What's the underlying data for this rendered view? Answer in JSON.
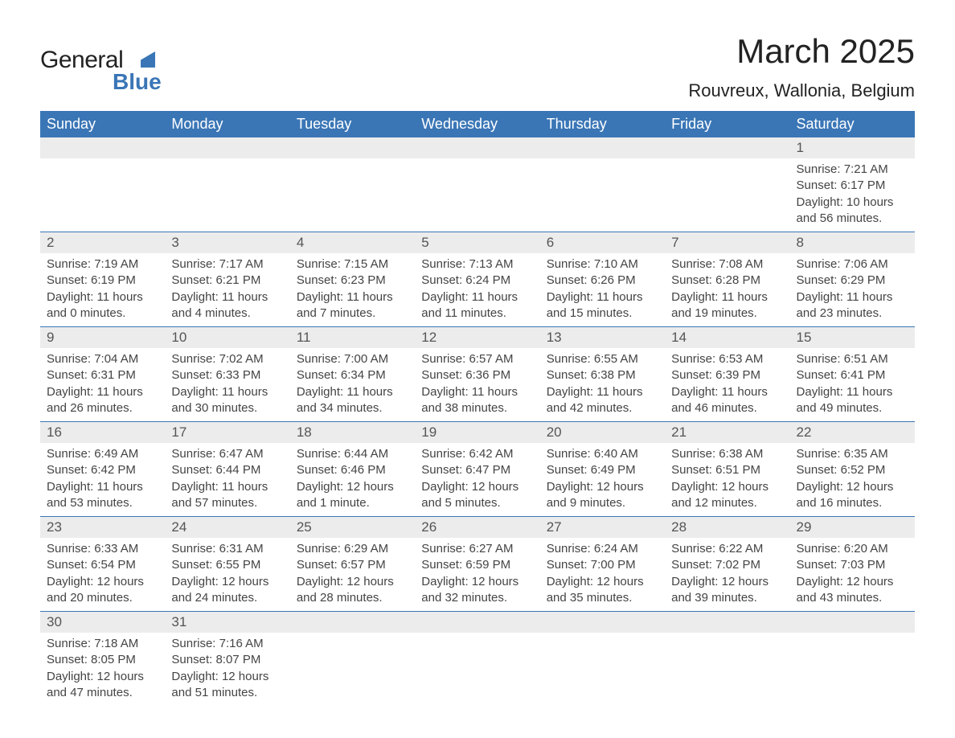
{
  "brand": {
    "word1": "General",
    "word2": "Blue",
    "accent_color": "#3a76b6"
  },
  "title": "March 2025",
  "location": "Rouvreux, Wallonia, Belgium",
  "colors": {
    "header_bg": "#3a76b6",
    "header_text": "#ffffff",
    "daynum_bg": "#ececec",
    "row_border": "#3a76b6",
    "body_text": "#444444",
    "page_bg": "#ffffff"
  },
  "typography": {
    "title_fontsize": 42,
    "location_fontsize": 22,
    "weekday_fontsize": 18,
    "daynum_fontsize": 17,
    "detail_fontsize": 15
  },
  "weekdays": [
    "Sunday",
    "Monday",
    "Tuesday",
    "Wednesday",
    "Thursday",
    "Friday",
    "Saturday"
  ],
  "weeks": [
    [
      null,
      null,
      null,
      null,
      null,
      null,
      {
        "d": "1",
        "sr": "Sunrise: 7:21 AM",
        "ss": "Sunset: 6:17 PM",
        "dl1": "Daylight: 10 hours",
        "dl2": "and 56 minutes."
      }
    ],
    [
      {
        "d": "2",
        "sr": "Sunrise: 7:19 AM",
        "ss": "Sunset: 6:19 PM",
        "dl1": "Daylight: 11 hours",
        "dl2": "and 0 minutes."
      },
      {
        "d": "3",
        "sr": "Sunrise: 7:17 AM",
        "ss": "Sunset: 6:21 PM",
        "dl1": "Daylight: 11 hours",
        "dl2": "and 4 minutes."
      },
      {
        "d": "4",
        "sr": "Sunrise: 7:15 AM",
        "ss": "Sunset: 6:23 PM",
        "dl1": "Daylight: 11 hours",
        "dl2": "and 7 minutes."
      },
      {
        "d": "5",
        "sr": "Sunrise: 7:13 AM",
        "ss": "Sunset: 6:24 PM",
        "dl1": "Daylight: 11 hours",
        "dl2": "and 11 minutes."
      },
      {
        "d": "6",
        "sr": "Sunrise: 7:10 AM",
        "ss": "Sunset: 6:26 PM",
        "dl1": "Daylight: 11 hours",
        "dl2": "and 15 minutes."
      },
      {
        "d": "7",
        "sr": "Sunrise: 7:08 AM",
        "ss": "Sunset: 6:28 PM",
        "dl1": "Daylight: 11 hours",
        "dl2": "and 19 minutes."
      },
      {
        "d": "8",
        "sr": "Sunrise: 7:06 AM",
        "ss": "Sunset: 6:29 PM",
        "dl1": "Daylight: 11 hours",
        "dl2": "and 23 minutes."
      }
    ],
    [
      {
        "d": "9",
        "sr": "Sunrise: 7:04 AM",
        "ss": "Sunset: 6:31 PM",
        "dl1": "Daylight: 11 hours",
        "dl2": "and 26 minutes."
      },
      {
        "d": "10",
        "sr": "Sunrise: 7:02 AM",
        "ss": "Sunset: 6:33 PM",
        "dl1": "Daylight: 11 hours",
        "dl2": "and 30 minutes."
      },
      {
        "d": "11",
        "sr": "Sunrise: 7:00 AM",
        "ss": "Sunset: 6:34 PM",
        "dl1": "Daylight: 11 hours",
        "dl2": "and 34 minutes."
      },
      {
        "d": "12",
        "sr": "Sunrise: 6:57 AM",
        "ss": "Sunset: 6:36 PM",
        "dl1": "Daylight: 11 hours",
        "dl2": "and 38 minutes."
      },
      {
        "d": "13",
        "sr": "Sunrise: 6:55 AM",
        "ss": "Sunset: 6:38 PM",
        "dl1": "Daylight: 11 hours",
        "dl2": "and 42 minutes."
      },
      {
        "d": "14",
        "sr": "Sunrise: 6:53 AM",
        "ss": "Sunset: 6:39 PM",
        "dl1": "Daylight: 11 hours",
        "dl2": "and 46 minutes."
      },
      {
        "d": "15",
        "sr": "Sunrise: 6:51 AM",
        "ss": "Sunset: 6:41 PM",
        "dl1": "Daylight: 11 hours",
        "dl2": "and 49 minutes."
      }
    ],
    [
      {
        "d": "16",
        "sr": "Sunrise: 6:49 AM",
        "ss": "Sunset: 6:42 PM",
        "dl1": "Daylight: 11 hours",
        "dl2": "and 53 minutes."
      },
      {
        "d": "17",
        "sr": "Sunrise: 6:47 AM",
        "ss": "Sunset: 6:44 PM",
        "dl1": "Daylight: 11 hours",
        "dl2": "and 57 minutes."
      },
      {
        "d": "18",
        "sr": "Sunrise: 6:44 AM",
        "ss": "Sunset: 6:46 PM",
        "dl1": "Daylight: 12 hours",
        "dl2": "and 1 minute."
      },
      {
        "d": "19",
        "sr": "Sunrise: 6:42 AM",
        "ss": "Sunset: 6:47 PM",
        "dl1": "Daylight: 12 hours",
        "dl2": "and 5 minutes."
      },
      {
        "d": "20",
        "sr": "Sunrise: 6:40 AM",
        "ss": "Sunset: 6:49 PM",
        "dl1": "Daylight: 12 hours",
        "dl2": "and 9 minutes."
      },
      {
        "d": "21",
        "sr": "Sunrise: 6:38 AM",
        "ss": "Sunset: 6:51 PM",
        "dl1": "Daylight: 12 hours",
        "dl2": "and 12 minutes."
      },
      {
        "d": "22",
        "sr": "Sunrise: 6:35 AM",
        "ss": "Sunset: 6:52 PM",
        "dl1": "Daylight: 12 hours",
        "dl2": "and 16 minutes."
      }
    ],
    [
      {
        "d": "23",
        "sr": "Sunrise: 6:33 AM",
        "ss": "Sunset: 6:54 PM",
        "dl1": "Daylight: 12 hours",
        "dl2": "and 20 minutes."
      },
      {
        "d": "24",
        "sr": "Sunrise: 6:31 AM",
        "ss": "Sunset: 6:55 PM",
        "dl1": "Daylight: 12 hours",
        "dl2": "and 24 minutes."
      },
      {
        "d": "25",
        "sr": "Sunrise: 6:29 AM",
        "ss": "Sunset: 6:57 PM",
        "dl1": "Daylight: 12 hours",
        "dl2": "and 28 minutes."
      },
      {
        "d": "26",
        "sr": "Sunrise: 6:27 AM",
        "ss": "Sunset: 6:59 PM",
        "dl1": "Daylight: 12 hours",
        "dl2": "and 32 minutes."
      },
      {
        "d": "27",
        "sr": "Sunrise: 6:24 AM",
        "ss": "Sunset: 7:00 PM",
        "dl1": "Daylight: 12 hours",
        "dl2": "and 35 minutes."
      },
      {
        "d": "28",
        "sr": "Sunrise: 6:22 AM",
        "ss": "Sunset: 7:02 PM",
        "dl1": "Daylight: 12 hours",
        "dl2": "and 39 minutes."
      },
      {
        "d": "29",
        "sr": "Sunrise: 6:20 AM",
        "ss": "Sunset: 7:03 PM",
        "dl1": "Daylight: 12 hours",
        "dl2": "and 43 minutes."
      }
    ],
    [
      {
        "d": "30",
        "sr": "Sunrise: 7:18 AM",
        "ss": "Sunset: 8:05 PM",
        "dl1": "Daylight: 12 hours",
        "dl2": "and 47 minutes."
      },
      {
        "d": "31",
        "sr": "Sunrise: 7:16 AM",
        "ss": "Sunset: 8:07 PM",
        "dl1": "Daylight: 12 hours",
        "dl2": "and 51 minutes."
      },
      null,
      null,
      null,
      null,
      null
    ]
  ]
}
